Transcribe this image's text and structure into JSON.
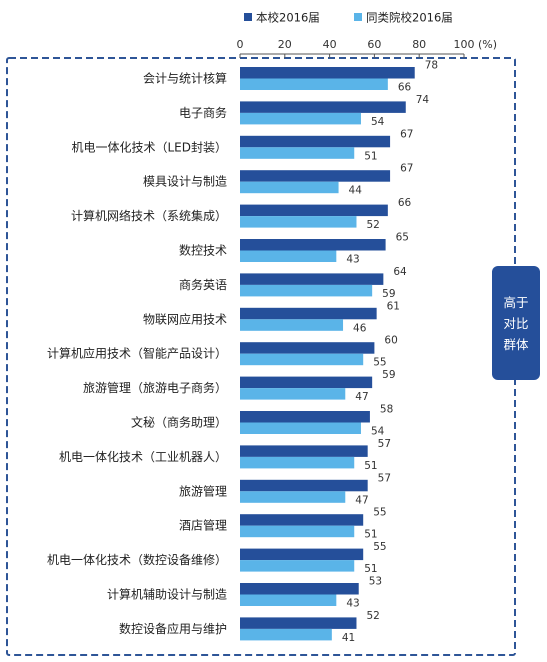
{
  "chart_data": {
    "type": "bar",
    "orientation": "horizontal",
    "categories": [
      "会计与统计核算",
      "电子商务",
      "机电一体化技术（LED封装）",
      "模具设计与制造",
      "计算机网络技术（系统集成）",
      "数控技术",
      "商务英语",
      "物联网应用技术",
      "计算机应用技术（智能产品设计）",
      "旅游管理（旅游电子商务）",
      "文秘（商务助理）",
      "机电一体化技术（工业机器人）",
      "旅游管理",
      "酒店管理",
      "机电一体化技术（数控设备维修）",
      "计算机辅助设计与制造",
      "数控设备应用与维护"
    ],
    "series": [
      {
        "name": "本校2016届",
        "color": "#254f9a",
        "values": [
          78,
          74,
          67,
          67,
          66,
          65,
          64,
          61,
          60,
          59,
          58,
          57,
          57,
          55,
          55,
          53,
          52
        ]
      },
      {
        "name": "同类院校2016届",
        "color": "#5ab4e8",
        "values": [
          66,
          54,
          51,
          44,
          52,
          43,
          59,
          46,
          55,
          47,
          54,
          51,
          47,
          51,
          51,
          43,
          41
        ]
      }
    ],
    "xlim": [
      0,
      100
    ],
    "xticks": [
      0,
      20,
      40,
      60,
      80,
      100
    ],
    "x_unit": "(%)",
    "legend_position": "top",
    "grid": false
  },
  "annotation": {
    "text": "高于对比群体",
    "color": "#254f9a"
  }
}
